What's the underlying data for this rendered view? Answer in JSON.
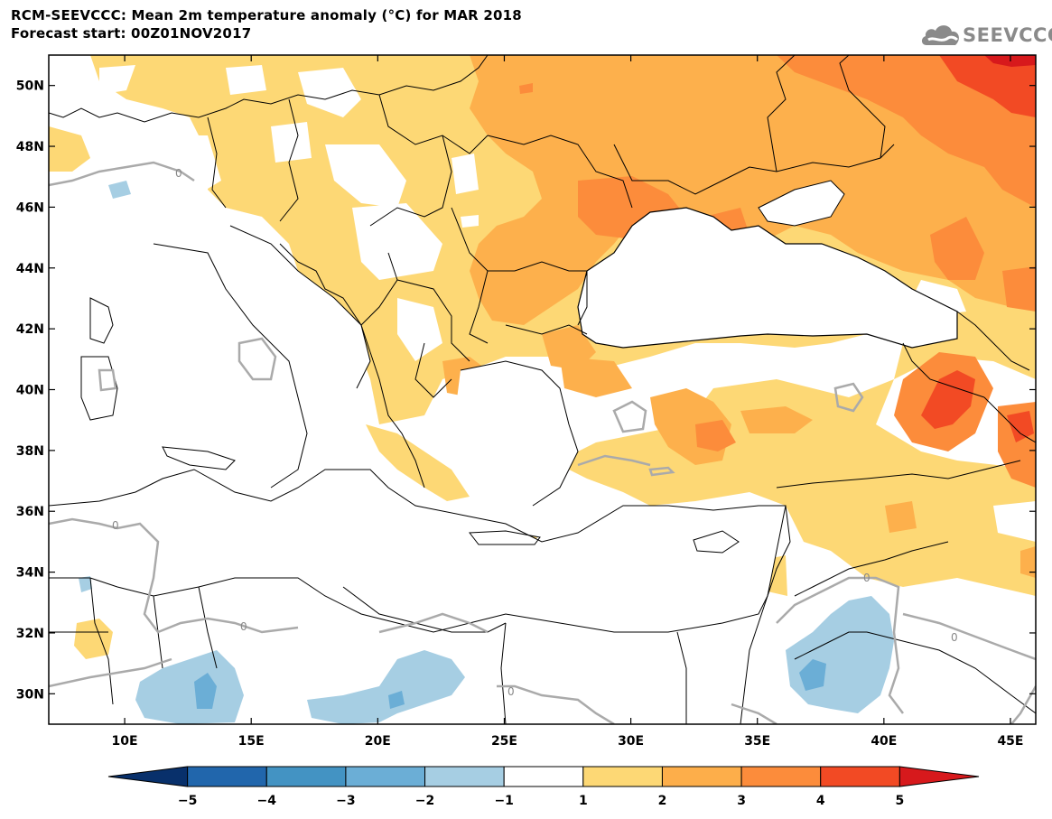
{
  "title_line1": "RCM-SEEVCCC: Mean 2m temperature anomaly (°C) for MAR 2018",
  "title_line2": "Forecast start: 00Z01NOV2017",
  "logo_text": "SEEVCCC",
  "map": {
    "lon_range": [
      7,
      46
    ],
    "lat_range": [
      29,
      51
    ],
    "lat_ticks": [
      {
        "value": 50,
        "label": "50N"
      },
      {
        "value": 48,
        "label": "48N"
      },
      {
        "value": 46,
        "label": "46N"
      },
      {
        "value": 44,
        "label": "44N"
      },
      {
        "value": 42,
        "label": "42N"
      },
      {
        "value": 40,
        "label": "40N"
      },
      {
        "value": 38,
        "label": "38N"
      },
      {
        "value": 36,
        "label": "36N"
      },
      {
        "value": 34,
        "label": "34N"
      },
      {
        "value": 32,
        "label": "32N"
      },
      {
        "value": 30,
        "label": "30N"
      }
    ],
    "lon_ticks": [
      {
        "value": 10,
        "label": "10E"
      },
      {
        "value": 15,
        "label": "15E"
      },
      {
        "value": 20,
        "label": "20E"
      },
      {
        "value": 25,
        "label": "25E"
      },
      {
        "value": 30,
        "label": "30E"
      },
      {
        "value": 35,
        "label": "35E"
      },
      {
        "value": 40,
        "label": "40E"
      },
      {
        "value": 45,
        "label": "45E"
      }
    ],
    "contour_labels": [
      "0",
      "0",
      "0",
      "0",
      "0",
      "0"
    ]
  },
  "colorbar": {
    "levels": [
      "-5",
      "-4",
      "-3",
      "-2",
      "-1",
      "1",
      "2",
      "3",
      "4",
      "5"
    ],
    "colors": [
      "#08306b",
      "#2166ac",
      "#4393c3",
      "#6baed6",
      "#a6cee3",
      "#ffffff",
      "#fdd875",
      "#fdae4a",
      "#fc8c3b",
      "#f24a24",
      "#d7191c"
    ]
  },
  "colors": {
    "anomaly_1_2": "#fdd875",
    "anomaly_2_3": "#fdb04c",
    "anomaly_3_4": "#fc8c3b",
    "anomaly_4_5": "#f24a24",
    "anomaly_gt5": "#d7191c",
    "anomaly_m1_m2": "#a6cee3",
    "anomaly_m2_m3": "#6baed6",
    "zero_contour": "#aaaaaa"
  }
}
